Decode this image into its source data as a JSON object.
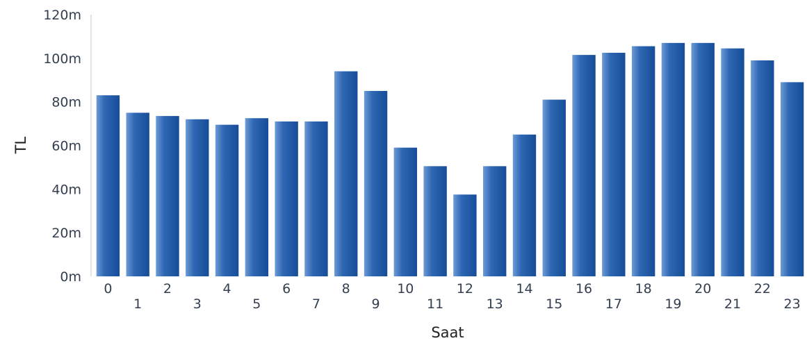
{
  "chart_data": {
    "type": "bar",
    "xlabel": "Saat",
    "ylabel": "TL",
    "ylim": [
      0,
      120
    ],
    "y_ticks": [
      "0m",
      "20m",
      "40m",
      "60m",
      "80m",
      "100m",
      "120m"
    ],
    "y_tick_values": [
      0,
      20,
      40,
      60,
      80,
      100,
      120
    ],
    "categories": [
      "0",
      "1",
      "2",
      "3",
      "4",
      "5",
      "6",
      "7",
      "8",
      "9",
      "10",
      "11",
      "12",
      "13",
      "14",
      "15",
      "16",
      "17",
      "18",
      "19",
      "20",
      "21",
      "22",
      "23"
    ],
    "values": [
      83,
      75,
      73.5,
      72,
      69.5,
      72.5,
      71,
      71,
      94,
      85,
      59,
      50.5,
      37.5,
      50.5,
      65,
      81,
      101.5,
      102.5,
      105.5,
      107,
      107,
      104.5,
      99,
      89
    ],
    "unit_suffix": "m",
    "bar_color": "#1f5aa6",
    "bar_highlight": "#5b8fd0",
    "grid": false,
    "legend": "none"
  }
}
